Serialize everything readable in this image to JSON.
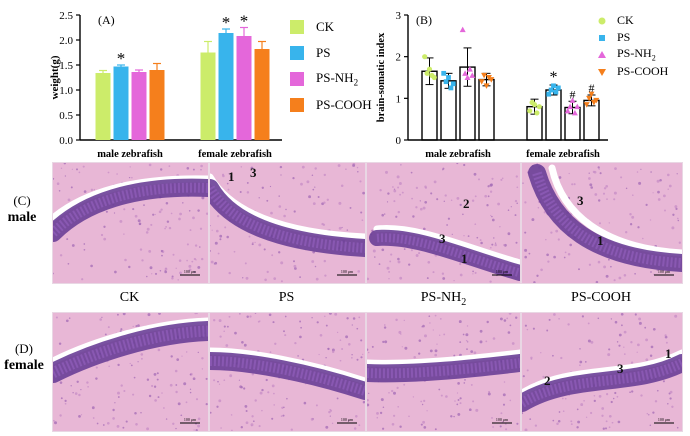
{
  "chart_data": [
    {
      "type": "bar",
      "panel": "(A)",
      "ylabel": "weight(g)",
      "ylim": [
        0,
        2.5
      ],
      "yticks": [
        "0.0",
        "0.5",
        "1.0",
        "1.5",
        "2.0",
        "2.5"
      ],
      "categories": [
        "male zebrafish",
        "female zebrafish"
      ],
      "series": [
        {
          "name": "CK",
          "color": "#ccec6a",
          "values": [
            1.34,
            1.75
          ],
          "err": [
            0.05,
            0.22
          ],
          "sig": [
            "",
            ""
          ]
        },
        {
          "name": "PS",
          "color": "#38b4ec",
          "values": [
            1.47,
            2.14
          ],
          "err": [
            0.03,
            0.08
          ],
          "sig": [
            "*",
            "*"
          ]
        },
        {
          "name": "PS-NH2",
          "color": "#e467da",
          "values": [
            1.36,
            2.08
          ],
          "err": [
            0.04,
            0.17
          ],
          "sig": [
            "",
            "*"
          ]
        },
        {
          "name": "PS-COOH",
          "color": "#f57f1c",
          "values": [
            1.4,
            1.82
          ],
          "err": [
            0.13,
            0.15
          ],
          "sig": [
            "",
            ""
          ]
        }
      ],
      "legend_position": "right"
    },
    {
      "type": "bar",
      "panel": "(B)",
      "ylabel": "brain-somatic index",
      "ylim": [
        0,
        3
      ],
      "yticks": [
        "0",
        "1",
        "2",
        "3"
      ],
      "categories": [
        "male zebrafish",
        "female zebrafish"
      ],
      "series": [
        {
          "name": "CK",
          "color": "#ccec6a",
          "marker": "circle",
          "values": [
            1.65,
            0.8
          ],
          "err": [
            0.32,
            0.18
          ],
          "sig": [
            "",
            ""
          ],
          "points": [
            [
              2.0,
              1.6,
              1.7,
              1.55,
              1.5
            ],
            [
              0.7,
              0.9,
              0.85,
              0.65,
              0.8
            ]
          ]
        },
        {
          "name": "PS",
          "color": "#38b4ec",
          "marker": "square",
          "values": [
            1.42,
            1.2
          ],
          "err": [
            0.18,
            0.12
          ],
          "sig": [
            "",
            "*"
          ],
          "points": [
            [
              1.6,
              1.4,
              1.5,
              1.25,
              1.35
            ],
            [
              1.1,
              1.2,
              1.3,
              1.15,
              1.25
            ]
          ]
        },
        {
          "name": "PS-NH2",
          "color": "#e467da",
          "marker": "triangle-up",
          "values": [
            1.75,
            0.78
          ],
          "err": [
            0.46,
            0.15
          ],
          "sig": [
            "",
            "#"
          ],
          "points": [
            [
              2.65,
              1.6,
              1.5,
              1.7,
              1.55
            ],
            [
              0.7,
              0.8,
              0.95,
              0.65,
              0.8
            ]
          ]
        },
        {
          "name": "PS-COOH",
          "color": "#f57f1c",
          "marker": "triangle-down",
          "values": [
            1.45,
            0.95
          ],
          "err": [
            0.15,
            0.13
          ],
          "sig": [
            "",
            "#"
          ],
          "points": [
            [
              1.4,
              1.55,
              1.3,
              1.5,
              1.45
            ],
            [
              0.85,
              1.0,
              1.1,
              0.9,
              0.95
            ]
          ]
        }
      ],
      "legend_position": "right"
    }
  ],
  "legend_a": {
    "ck": "CK",
    "ps": "PS",
    "nh2_base": "PS-NH",
    "nh2_sub": "2",
    "cooh": "PS-COOH"
  },
  "legend_b": {
    "ck": "CK",
    "ps": "PS",
    "nh2_base": "PS-NH",
    "nh2_sub": "2",
    "cooh": "PS-COOH"
  },
  "micrographs": {
    "label_c": "(C)",
    "label_c_word": "male",
    "label_d": "(D)",
    "label_d_word": "female",
    "columns": [
      {
        "label": "CK"
      },
      {
        "label": "PS"
      },
      {
        "label_base": "PS-NH",
        "label_sub": "2"
      },
      {
        "label": "PS-COOH"
      }
    ],
    "scalebar": "100 μm",
    "male_marks": [
      [],
      [
        "1",
        "3"
      ],
      [
        "2",
        "3",
        "1"
      ],
      [
        "3",
        "1"
      ]
    ],
    "female_marks": [
      [],
      [],
      [],
      [
        "1",
        "2",
        "3"
      ]
    ]
  },
  "colors": {
    "tissue_pink": "#e8b7d6",
    "nuclei_purple": "#6a3f97",
    "lumen": "#ffffff"
  }
}
